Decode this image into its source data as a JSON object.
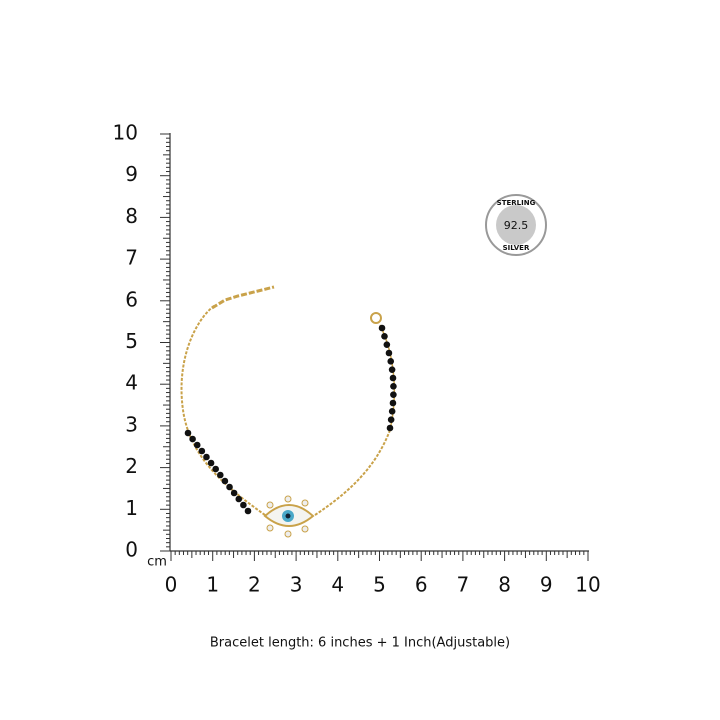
{
  "ruler": {
    "y_labels": [
      "0",
      "1",
      "2",
      "3",
      "4",
      "5",
      "6",
      "7",
      "8",
      "9",
      "10"
    ],
    "x_labels": [
      "0",
      "1",
      "2",
      "3",
      "4",
      "5",
      "6",
      "7",
      "8",
      "9",
      "10"
    ],
    "unit": "cm"
  },
  "badge": {
    "top": "STERLING",
    "center": "92.5",
    "bottom": "SILVER"
  },
  "caption": "Bracelet length: 6 inches + 1 Inch(Adjustable)"
}
